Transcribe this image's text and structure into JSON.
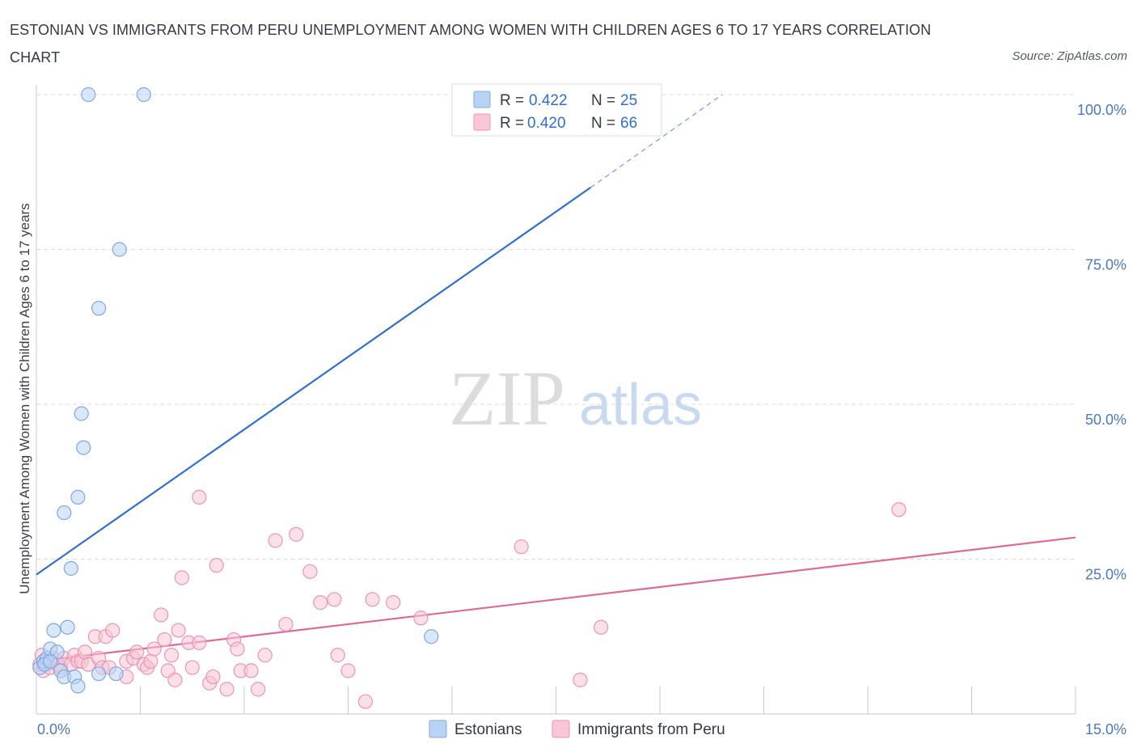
{
  "title": "ESTONIAN VS IMMIGRANTS FROM PERU UNEMPLOYMENT AMONG WOMEN WITH CHILDREN AGES 6 TO 17 YEARS CORRELATION CHART",
  "source": "Source: ZipAtlas.com",
  "watermark": {
    "zip": "ZIP",
    "atlas": "atlas"
  },
  "colors": {
    "estonians_fill": "#b9d3f5",
    "estonians_stroke": "#7fa8e0",
    "estonians_line": "#2f6fd0",
    "peru_fill": "#f8c6d6",
    "peru_stroke": "#ec94b2",
    "peru_line": "#e06a97",
    "axis_text": "#4a78c2",
    "grid": "#dcdcdc"
  },
  "chart_data": {
    "type": "scatter",
    "title": "ESTONIAN VS IMMIGRANTS FROM PERU UNEMPLOYMENT AMONG WOMEN WITH CHILDREN AGES 6 TO 17 YEARS CORRELATION CHART",
    "xlabel": "",
    "ylabel": "Unemployment Among Women with Children Ages 6 to 17 years",
    "xlim": [
      0,
      15
    ],
    "ylim": [
      0,
      100
    ],
    "x_ticks": [
      {
        "value": 0,
        "label": "0.0%"
      },
      {
        "value": 15,
        "label": "15.0%"
      }
    ],
    "y_ticks": [
      {
        "value": 25,
        "label": "25.0%"
      },
      {
        "value": 50,
        "label": "50.0%"
      },
      {
        "value": 75,
        "label": "75.0%"
      },
      {
        "value": 100,
        "label": "100.0%"
      }
    ],
    "legend": [
      {
        "series": "Estonians",
        "r_label": "R =",
        "r": "0.422",
        "n_label": "N =",
        "n": "25"
      },
      {
        "series": "Immigrants from Peru",
        "r_label": "R =",
        "r": "0.420",
        "n_label": "N =",
        "n": "66"
      }
    ],
    "series": [
      {
        "name": "Estonians",
        "trend": {
          "x0": 0,
          "y0": 22.5,
          "x1": 8.0,
          "y1": 85.0,
          "dash_to_x": 9.9,
          "dash_to_y": 100.0
        },
        "points": [
          [
            0.05,
            7.5
          ],
          [
            0.1,
            8.5
          ],
          [
            0.15,
            9.0
          ],
          [
            0.2,
            10.5
          ],
          [
            0.25,
            13.5
          ],
          [
            0.3,
            10.0
          ],
          [
            0.35,
            7.0
          ],
          [
            0.4,
            6.0
          ],
          [
            0.45,
            14.0
          ],
          [
            0.5,
            23.5
          ],
          [
            0.55,
            6.0
          ],
          [
            0.6,
            4.5
          ],
          [
            0.4,
            32.5
          ],
          [
            0.6,
            35.0
          ],
          [
            0.65,
            48.5
          ],
          [
            0.68,
            43.0
          ],
          [
            0.75,
            100.0
          ],
          [
            0.9,
            65.5
          ],
          [
            0.9,
            6.5
          ],
          [
            1.15,
            6.5
          ],
          [
            1.2,
            75.0
          ],
          [
            1.55,
            100.0
          ],
          [
            5.7,
            12.5
          ],
          [
            0.12,
            8.0
          ],
          [
            0.2,
            8.5
          ]
        ]
      },
      {
        "name": "Immigrants from Peru",
        "trend": {
          "x0": 0,
          "y0": 8.5,
          "x1": 15.0,
          "y1": 28.5
        },
        "points": [
          [
            0.05,
            8.0
          ],
          [
            0.08,
            9.5
          ],
          [
            0.1,
            7.0
          ],
          [
            0.15,
            8.5
          ],
          [
            0.2,
            7.5
          ],
          [
            0.25,
            9.0
          ],
          [
            0.3,
            8.0
          ],
          [
            0.35,
            7.5
          ],
          [
            0.4,
            9.0
          ],
          [
            0.5,
            8.0
          ],
          [
            0.55,
            9.5
          ],
          [
            0.6,
            8.5
          ],
          [
            0.65,
            8.5
          ],
          [
            0.7,
            10.0
          ],
          [
            0.75,
            8.0
          ],
          [
            0.85,
            12.5
          ],
          [
            0.9,
            9.0
          ],
          [
            0.95,
            7.5
          ],
          [
            1.0,
            12.5
          ],
          [
            1.05,
            7.5
          ],
          [
            1.1,
            13.5
          ],
          [
            1.3,
            8.5
          ],
          [
            1.3,
            6.0
          ],
          [
            1.4,
            9.0
          ],
          [
            1.45,
            10.0
          ],
          [
            1.55,
            8.0
          ],
          [
            1.6,
            7.5
          ],
          [
            1.65,
            8.5
          ],
          [
            1.7,
            10.5
          ],
          [
            1.8,
            16.0
          ],
          [
            1.85,
            12.0
          ],
          [
            1.9,
            7.0
          ],
          [
            1.95,
            9.5
          ],
          [
            2.0,
            5.5
          ],
          [
            2.05,
            13.5
          ],
          [
            2.1,
            22.0
          ],
          [
            2.2,
            11.5
          ],
          [
            2.25,
            7.5
          ],
          [
            2.35,
            11.5
          ],
          [
            2.5,
            5.0
          ],
          [
            2.55,
            6.0
          ],
          [
            2.6,
            24.0
          ],
          [
            2.75,
            4.0
          ],
          [
            2.85,
            12.0
          ],
          [
            2.9,
            10.5
          ],
          [
            2.95,
            7.0
          ],
          [
            3.1,
            7.0
          ],
          [
            3.2,
            4.0
          ],
          [
            3.3,
            9.5
          ],
          [
            3.45,
            28.0
          ],
          [
            3.6,
            14.5
          ],
          [
            3.75,
            29.0
          ],
          [
            3.95,
            23.0
          ],
          [
            4.1,
            18.0
          ],
          [
            4.3,
            18.5
          ],
          [
            4.35,
            9.5
          ],
          [
            4.5,
            7.0
          ],
          [
            4.75,
            2.0
          ],
          [
            4.85,
            18.5
          ],
          [
            5.15,
            18.0
          ],
          [
            5.55,
            15.5
          ],
          [
            7.0,
            27.0
          ],
          [
            7.85,
            5.5
          ],
          [
            8.15,
            14.0
          ],
          [
            12.45,
            33.0
          ],
          [
            2.35,
            35.0
          ]
        ]
      }
    ]
  }
}
